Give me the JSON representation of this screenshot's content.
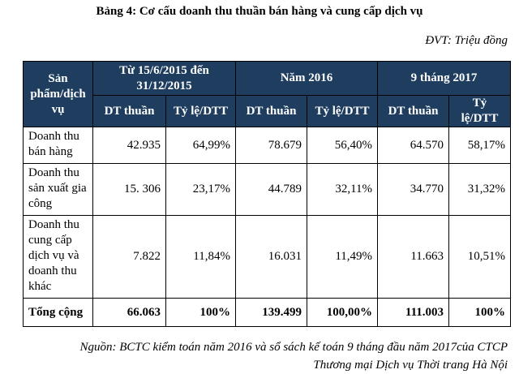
{
  "title": "Bảng 4:  Cơ cấu doanh thu thuần bán hàng và cung cấp dịch vụ",
  "unit": "ĐVT: Triệu đồng",
  "header": {
    "row_header": "Sản phẩm/dịch vụ",
    "periods": [
      "Từ 15/6/2015 đến 31/12/2015",
      "Năm 2016",
      "9 tháng 2017"
    ],
    "sub": {
      "dt": "DT thuần",
      "ratio": "Tỷ lệ/DTT"
    }
  },
  "rows": [
    {
      "label": "Doanh thu bán hàng",
      "values": [
        "42.935",
        "64,99%",
        "78.679",
        "56,40%",
        "64.570",
        "58,17%"
      ]
    },
    {
      "label": "Doanh thu sản xuất gia công",
      "values": [
        "15. 306",
        "23,17%",
        "44.789",
        "32,11%",
        "34.770",
        "31,32%"
      ]
    },
    {
      "label": "Doanh thu cung cấp dịch vụ và doanh thu khác",
      "values": [
        "7.822",
        "11,84%",
        "16.031",
        "11,49%",
        "11.663",
        "10,51%"
      ]
    }
  ],
  "total": {
    "label": "Tổng cộng",
    "values": [
      "66.063",
      "100%",
      "139.499",
      "100,00%",
      "111.003",
      "100%"
    ]
  },
  "source": {
    "line1": "Nguồn: BCTC kiểm toán năm 2016 và sổ sách kế toán 9 tháng đầu năm 2017của CTCP",
    "line2": "Thương mại Dịch vụ Thời trang Hà Nội"
  },
  "colors": {
    "header_bg": "#1f3e5f",
    "header_text": "#ffffff"
  }
}
